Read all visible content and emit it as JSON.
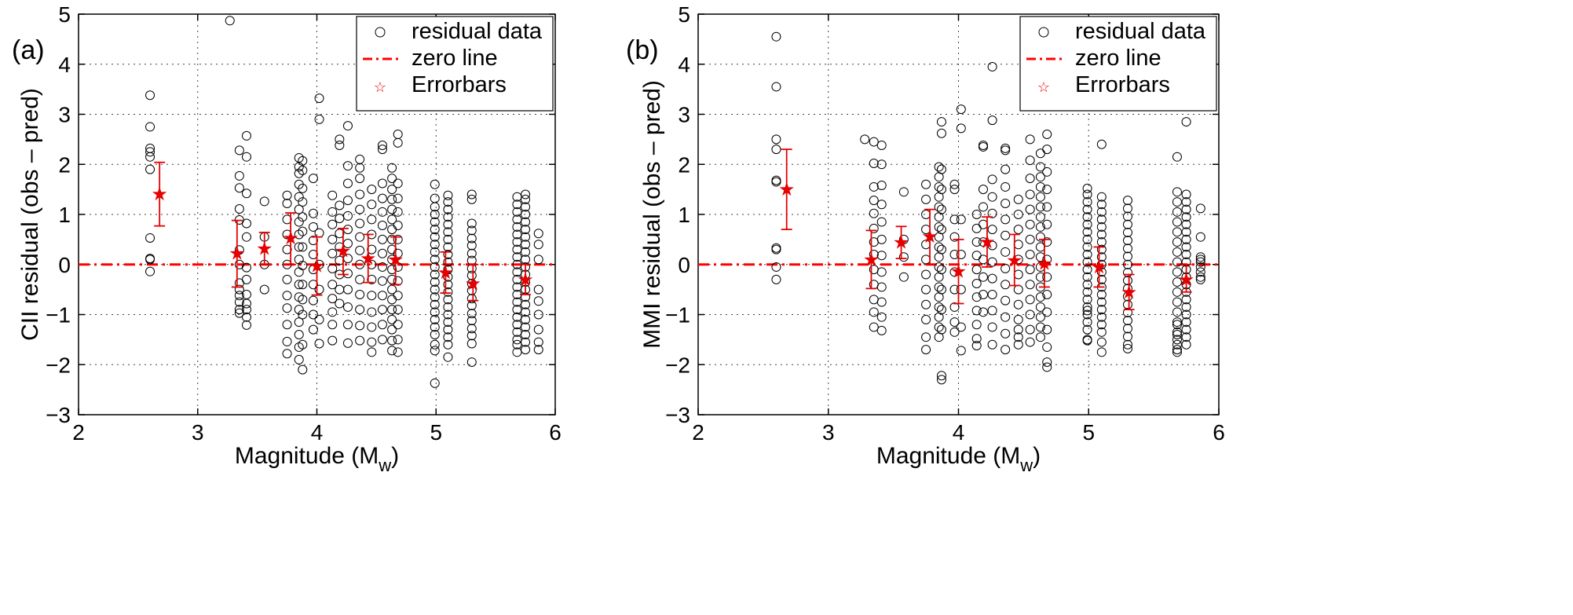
{
  "chart_data": [
    {
      "type": "scatter",
      "panel_label": "(a)",
      "xlabel": "Magnitude (M",
      "xlabel_sub": "w",
      "xlabel_close": ")",
      "ylabel": "CII residual (obs – pred)",
      "xlim": [
        2,
        6
      ],
      "ylim": [
        -3,
        5
      ],
      "x_ticks": [
        "2",
        "3",
        "4",
        "5",
        "6"
      ],
      "y_ticks": [
        "−3",
        "−2",
        "−1",
        "0",
        "1",
        "2",
        "3",
        "4",
        "5"
      ],
      "grid": true,
      "legend": {
        "placement": "top-right",
        "entries": [
          "residual data",
          "zero line",
          "Errorbars"
        ]
      },
      "colors": {
        "data": "#000000",
        "zero_line": "#ff0000",
        "errorbars": "#e60000"
      },
      "zero_line": 0,
      "residual_groups": [
        {
          "x": 2.6,
          "y": [
            3.38,
            2.75,
            2.32,
            2.25,
            2.15,
            1.9,
            0.53,
            0.12,
            0.1,
            -0.14
          ]
        },
        {
          "x": 3.27,
          "y": [
            4.87
          ]
        },
        {
          "x": 3.35,
          "y": [
            2.28,
            1.77,
            1.53,
            1.11,
            0.89,
            0.29,
            0.0,
            -0.37,
            -0.5,
            -0.62,
            -0.75,
            -0.9,
            -0.97
          ]
        },
        {
          "x": 3.41,
          "y": [
            2.57,
            2.15,
            1.42,
            0.82,
            0.55,
            -0.06,
            -0.3,
            -0.6,
            -0.78,
            -0.9,
            -1.05,
            -1.21
          ]
        },
        {
          "x": 3.56,
          "y": [
            1.26,
            0.55,
            0.0,
            -0.5
          ]
        },
        {
          "x": 3.75,
          "y": [
            1.38,
            1.22,
            0.9,
            0.6,
            0.3,
            0.0,
            -0.3,
            -0.62,
            -0.87,
            -1.2,
            -1.54,
            -1.78
          ]
        },
        {
          "x": 3.85,
          "y": [
            2.13,
            1.95,
            1.82,
            1.6,
            1.35,
            1.1,
            0.85,
            0.6,
            0.35,
            0.1,
            -0.15,
            -0.4,
            -0.65,
            -0.9,
            -1.15,
            -1.4,
            -1.65,
            -1.9
          ]
        },
        {
          "x": 3.88,
          "y": [
            2.07,
            1.88,
            1.52,
            1.25,
            0.95,
            0.66,
            0.35,
            -0.02,
            -0.4,
            -0.7,
            -1.0,
            -1.6,
            -2.1
          ]
        },
        {
          "x": 3.97,
          "y": [
            1.72,
            1.02,
            0.75,
            0.48,
            0.2,
            -0.1,
            -0.4,
            -0.72,
            -1.0,
            -1.3
          ]
        },
        {
          "x": 4.02,
          "y": [
            3.32,
            2.9,
            0.63,
            0.0,
            -0.5,
            -1.1,
            -1.58
          ]
        },
        {
          "x": 4.13,
          "y": [
            1.38,
            1.05,
            0.8,
            0.5,
            0.22,
            -0.08,
            -0.4,
            -0.68,
            -0.95,
            -1.2,
            -1.52
          ]
        },
        {
          "x": 4.19,
          "y": [
            2.5,
            2.38,
            1.18,
            0.92,
            0.62,
            0.35,
            0.08,
            -0.2,
            -0.5,
            -0.78
          ]
        },
        {
          "x": 4.26,
          "y": [
            2.77,
            1.97,
            1.62,
            1.28,
            0.97,
            0.7,
            0.42,
            0.12,
            -0.18,
            -0.5,
            -0.85,
            -1.2,
            -1.57
          ]
        },
        {
          "x": 4.36,
          "y": [
            2.1,
            1.93,
            1.72,
            1.4,
            1.1,
            0.82,
            0.55,
            0.28,
            0.0,
            -0.3,
            -0.6,
            -0.9,
            -1.22,
            -1.52
          ]
        },
        {
          "x": 4.46,
          "y": [
            1.5,
            1.2,
            0.9,
            0.6,
            0.3,
            0.0,
            -0.3,
            -0.62,
            -0.95,
            -1.25,
            -1.55,
            -1.75
          ]
        },
        {
          "x": 4.55,
          "y": [
            2.38,
            2.3,
            1.62,
            1.32,
            1.05,
            0.78,
            0.5,
            0.22,
            -0.05,
            -0.33,
            -0.62,
            -0.9,
            -1.2,
            -1.5
          ]
        },
        {
          "x": 4.63,
          "y": [
            1.93,
            1.72,
            1.5,
            1.3,
            1.1,
            0.9,
            0.7,
            0.5,
            0.3,
            0.1,
            -0.1,
            -0.3,
            -0.5,
            -0.7,
            -0.9,
            -1.1,
            -1.3,
            -1.52,
            -1.72
          ]
        },
        {
          "x": 4.68,
          "y": [
            2.6,
            2.43,
            1.62,
            1.32,
            1.05,
            0.78,
            0.5,
            0.22,
            -0.05,
            -0.33,
            -0.62,
            -0.9,
            -1.2,
            -1.5,
            -1.75
          ]
        },
        {
          "x": 4.99,
          "y": [
            1.6,
            1.32,
            1.15,
            1.0,
            0.85,
            0.7,
            0.55,
            0.4,
            0.25,
            0.1,
            -0.05,
            -0.2,
            -0.35,
            -0.5,
            -0.65,
            -0.8,
            -0.95,
            -1.1,
            -1.25,
            -1.4,
            -1.6,
            -1.72,
            -2.37
          ]
        },
        {
          "x": 5.1,
          "y": [
            1.38,
            1.25,
            1.1,
            0.95,
            0.8,
            0.65,
            0.5,
            0.35,
            0.2,
            0.05,
            -0.1,
            -0.25,
            -0.4,
            -0.55,
            -0.7,
            -0.85,
            -1.0,
            -1.15,
            -1.3,
            -1.45,
            -1.6,
            -1.85
          ]
        },
        {
          "x": 5.3,
          "y": [
            1.4,
            1.3,
            0.82,
            0.68,
            0.52,
            0.38,
            0.22,
            0.08,
            -0.08,
            -0.22,
            -0.38,
            -0.52,
            -0.68,
            -0.82,
            -0.98,
            -1.12,
            -1.28,
            -1.42,
            -1.58,
            -1.95
          ]
        },
        {
          "x": 5.68,
          "y": [
            1.35,
            1.2,
            1.05,
            0.9,
            0.75,
            0.6,
            0.45,
            0.3,
            0.15,
            0.0,
            -0.15,
            -0.3,
            -0.45,
            -0.6,
            -0.75,
            -0.9,
            -1.05,
            -1.2,
            -1.35,
            -1.5,
            -1.6,
            -1.75
          ]
        },
        {
          "x": 5.75,
          "y": [
            1.4,
            1.3,
            1.15,
            1.0,
            0.85,
            0.7,
            0.55,
            0.4,
            0.25,
            0.1,
            -0.05,
            -0.2,
            -0.35,
            -0.5,
            -0.65,
            -0.8,
            -0.95,
            -1.1,
            -1.25,
            -1.4,
            -1.55,
            -1.7
          ]
        },
        {
          "x": 5.86,
          "y": [
            0.62,
            0.4,
            0.1,
            -0.5,
            -0.73,
            -1.0,
            -1.3,
            -1.55,
            -1.7
          ]
        }
      ],
      "errorbars": [
        {
          "x": 2.68,
          "mean": 1.41,
          "low": 0.77,
          "high": 2.04
        },
        {
          "x": 3.33,
          "mean": 0.22,
          "low": -0.45,
          "high": 0.88
        },
        {
          "x": 3.56,
          "mean": 0.32,
          "low": 0.0,
          "high": 0.64
        },
        {
          "x": 3.78,
          "mean": 0.53,
          "low": 0.0,
          "high": 1.03
        },
        {
          "x": 4.0,
          "mean": -0.03,
          "low": -0.61,
          "high": 0.55
        },
        {
          "x": 4.22,
          "mean": 0.27,
          "low": -0.2,
          "high": 0.72
        },
        {
          "x": 4.43,
          "mean": 0.12,
          "low": -0.36,
          "high": 0.6
        },
        {
          "x": 4.66,
          "mean": 0.1,
          "low": -0.4,
          "high": 0.55
        },
        {
          "x": 5.08,
          "mean": -0.16,
          "low": -0.57,
          "high": 0.25
        },
        {
          "x": 5.31,
          "mean": -0.38,
          "low": -0.72,
          "high": 0.0
        },
        {
          "x": 5.75,
          "mean": -0.3,
          "low": -0.6,
          "high": 0.0
        }
      ]
    },
    {
      "type": "scatter",
      "panel_label": "(b)",
      "xlabel": "Magnitude (M",
      "xlabel_sub": "w",
      "xlabel_close": ")",
      "ylabel": "MMI residual (obs – pred)",
      "xlim": [
        2,
        6
      ],
      "ylim": [
        -3,
        5
      ],
      "x_ticks": [
        "2",
        "3",
        "4",
        "5",
        "6"
      ],
      "y_ticks": [
        "−3",
        "−2",
        "−1",
        "0",
        "1",
        "2",
        "3",
        "4",
        "5"
      ],
      "grid": true,
      "legend": {
        "placement": "top-right",
        "entries": [
          "residual data",
          "zero line",
          "Errorbars"
        ]
      },
      "colors": {
        "data": "#000000",
        "zero_line": "#ff0000",
        "errorbars": "#e60000"
      },
      "zero_line": 0,
      "residual_groups": [
        {
          "x": 2.6,
          "y": [
            4.55,
            3.55,
            2.5,
            2.3,
            1.68,
            1.65,
            0.33,
            0.3,
            -0.05,
            -0.3
          ]
        },
        {
          "x": 3.28,
          "y": [
            2.5
          ]
        },
        {
          "x": 3.35,
          "y": [
            2.45,
            2.02,
            1.55,
            1.28,
            1.02,
            0.72,
            0.45,
            0.2,
            -0.1,
            -0.4,
            -0.7,
            -0.95,
            -1.25
          ]
        },
        {
          "x": 3.41,
          "y": [
            2.38,
            2.0,
            1.58,
            1.2,
            0.85,
            0.5,
            0.18,
            -0.15,
            -0.45,
            -0.75,
            -1.05,
            -1.32
          ]
        },
        {
          "x": 3.58,
          "y": [
            1.45,
            0.5,
            0.15,
            -0.25
          ]
        },
        {
          "x": 3.75,
          "y": [
            1.6,
            1.3,
            1.0,
            0.7,
            0.4,
            0.1,
            -0.2,
            -0.5,
            -0.8,
            -1.1,
            -1.45,
            -1.7
          ]
        },
        {
          "x": 3.85,
          "y": [
            1.95,
            1.75,
            1.55,
            1.35,
            1.15,
            0.95,
            0.75,
            0.55,
            0.35,
            0.15,
            -0.05,
            -0.25,
            -0.45,
            -0.65,
            -0.85,
            -1.05,
            -1.25,
            -1.45
          ]
        },
        {
          "x": 3.87,
          "y": [
            2.85,
            2.62,
            1.9,
            1.5,
            1.1,
            0.7,
            0.3,
            -0.1,
            -0.5,
            -0.9,
            -1.3,
            -2.22,
            -2.3
          ]
        },
        {
          "x": 3.97,
          "y": [
            1.6,
            1.5,
            0.9,
            0.55,
            0.2,
            -0.15,
            -0.5,
            -0.85,
            -1.15,
            -1.35
          ]
        },
        {
          "x": 4.02,
          "y": [
            3.1,
            2.72,
            0.9,
            0.2,
            -0.5,
            -1.25,
            -1.72
          ]
        },
        {
          "x": 4.14,
          "y": [
            1.0,
            0.72,
            0.45,
            0.18,
            -0.1,
            -0.38,
            -0.65,
            -0.92,
            -1.2,
            -1.48,
            -1.62
          ]
        },
        {
          "x": 4.19,
          "y": [
            2.38,
            2.35,
            1.5,
            1.15,
            0.8,
            0.45,
            0.1,
            -0.25,
            -0.6,
            -0.95
          ]
        },
        {
          "x": 4.26,
          "y": [
            3.95,
            2.88,
            1.7,
            1.35,
            1.02,
            0.7,
            0.38,
            0.05,
            -0.28,
            -0.6,
            -0.92,
            -1.25,
            -1.6
          ]
        },
        {
          "x": 4.36,
          "y": [
            2.32,
            2.28,
            1.9,
            1.55,
            1.22,
            0.9,
            0.58,
            0.25,
            -0.08,
            -0.4,
            -0.72,
            -1.05,
            -1.38,
            -1.7
          ]
        },
        {
          "x": 4.46,
          "y": [
            1.3,
            1.0,
            0.7,
            0.4,
            0.1,
            -0.2,
            -0.5,
            -0.8,
            -1.1,
            -1.3,
            -1.45,
            -1.6
          ]
        },
        {
          "x": 4.55,
          "y": [
            2.5,
            2.08,
            1.72,
            1.4,
            1.1,
            0.8,
            0.5,
            0.2,
            -0.1,
            -0.4,
            -0.7,
            -1.0,
            -1.3,
            -1.55
          ]
        },
        {
          "x": 4.63,
          "y": [
            2.22,
            1.95,
            1.75,
            1.55,
            1.35,
            1.15,
            0.95,
            0.75,
            0.55,
            0.35,
            0.15,
            -0.05,
            -0.25,
            -0.45,
            -0.65,
            -0.85,
            -1.05,
            -1.25,
            -1.45
          ]
        },
        {
          "x": 4.68,
          "y": [
            2.6,
            2.3,
            1.85,
            1.5,
            1.15,
            0.8,
            0.45,
            0.1,
            -0.25,
            -0.6,
            -0.95,
            -1.3,
            -1.65,
            -1.95,
            -2.05
          ]
        },
        {
          "x": 4.99,
          "y": [
            1.52,
            1.4,
            1.25,
            1.1,
            0.95,
            0.8,
            0.65,
            0.5,
            0.35,
            0.2,
            0.05,
            -0.1,
            -0.25,
            -0.4,
            -0.55,
            -0.7,
            -0.85,
            -1.0,
            -1.15,
            -1.3,
            -1.5,
            -1.52,
            -0.92
          ]
        },
        {
          "x": 5.1,
          "y": [
            2.4,
            1.35,
            1.2,
            1.05,
            0.9,
            0.75,
            0.6,
            0.45,
            0.3,
            0.15,
            0.0,
            -0.15,
            -0.3,
            -0.45,
            -0.6,
            -0.75,
            -0.9,
            -1.05,
            -1.2,
            -1.35,
            -1.55,
            -1.75
          ]
        },
        {
          "x": 5.3,
          "y": [
            1.28,
            1.12,
            0.96,
            0.8,
            0.64,
            0.48,
            0.32,
            0.16,
            0.0,
            -0.16,
            -0.32,
            -0.48,
            -0.64,
            -0.8,
            -0.96,
            -1.12,
            -1.28,
            -1.44,
            -1.6,
            -1.68
          ]
        },
        {
          "x": 5.68,
          "y": [
            2.15,
            1.45,
            1.25,
            1.05,
            0.85,
            0.65,
            0.45,
            0.25,
            0.05,
            -0.15,
            -0.35,
            -0.55,
            -0.75,
            -0.95,
            -1.15,
            -1.35,
            -1.5,
            -1.6,
            -1.75,
            -1.7,
            -1.4,
            -1.2
          ]
        },
        {
          "x": 5.75,
          "y": [
            2.85,
            1.4,
            1.25,
            1.1,
            0.95,
            0.8,
            0.65,
            0.5,
            0.35,
            0.2,
            0.05,
            -0.1,
            -0.25,
            -0.4,
            -0.55,
            -0.7,
            -0.85,
            -1.0,
            -1.15,
            -1.3,
            -1.45,
            -1.6
          ]
        },
        {
          "x": 5.86,
          "y": [
            1.12,
            0.55,
            0.15,
            -0.3,
            -0.15,
            -0.05,
            0.05,
            0.1,
            -0.25
          ]
        }
      ],
      "errorbars": [
        {
          "x": 2.68,
          "mean": 1.5,
          "low": 0.7,
          "high": 2.3
        },
        {
          "x": 3.33,
          "mean": 0.1,
          "low": -0.48,
          "high": 0.68
        },
        {
          "x": 3.56,
          "mean": 0.44,
          "low": 0.12,
          "high": 0.76
        },
        {
          "x": 3.78,
          "mean": 0.56,
          "low": 0.0,
          "high": 1.1
        },
        {
          "x": 4.0,
          "mean": -0.14,
          "low": -0.78,
          "high": 0.5
        },
        {
          "x": 4.22,
          "mean": 0.45,
          "low": -0.05,
          "high": 0.95
        },
        {
          "x": 4.43,
          "mean": 0.08,
          "low": -0.42,
          "high": 0.6
        },
        {
          "x": 4.66,
          "mean": 0.02,
          "low": -0.45,
          "high": 0.5
        },
        {
          "x": 5.08,
          "mean": -0.05,
          "low": -0.45,
          "high": 0.35
        },
        {
          "x": 5.31,
          "mean": -0.55,
          "low": -0.9,
          "high": -0.2
        },
        {
          "x": 5.75,
          "mean": -0.3,
          "low": -0.55,
          "high": 0.0
        }
      ]
    }
  ]
}
